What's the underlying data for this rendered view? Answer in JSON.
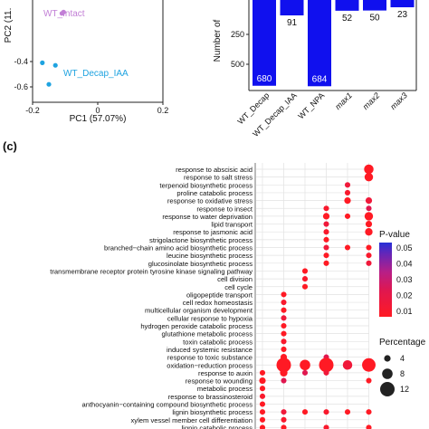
{
  "chart_data": [
    {
      "type": "scatter",
      "panel": "a",
      "xlabel": "PC1 (57.07%)",
      "ylabel": "PC2 (11.",
      "x_ticks": [
        "-0.2",
        "0",
        "0.2"
      ],
      "y_ticks": [
        "-0.4",
        "-0.6"
      ],
      "xlim": [
        -0.2,
        0.2
      ],
      "groups": [
        {
          "name": "WT_Intact",
          "color": "#c27fd6",
          "points": [
            [
              -0.11,
              -0.02
            ],
            [
              -0.105,
              -0.01
            ]
          ]
        },
        {
          "name": "WT_Decap_IAA",
          "color": "#1fa3e0",
          "points": [
            [
              -0.17,
              -0.41
            ],
            [
              -0.13,
              -0.43
            ],
            [
              -0.15,
              -0.58
            ]
          ]
        }
      ]
    },
    {
      "type": "bar",
      "panel": "b",
      "ylabel": "Number of",
      "y_ticks": [
        "250",
        "500"
      ],
      "ylim": [
        0,
        800
      ],
      "orientation": "downward",
      "categories": [
        "WT_Decap",
        "WT_Decap_IAA",
        "WT_NPA",
        "max1",
        "max2",
        "max3"
      ],
      "values": [
        680,
        91,
        684,
        52,
        50,
        23
      ],
      "color": "#1010ee"
    },
    {
      "type": "scatter",
      "panel": "c",
      "panel_label": "(c)",
      "columns": 6,
      "legend": {
        "color_title": "P-value",
        "color_ticks": [
          "0.05",
          "0.04",
          "0.03",
          "0.02",
          "0.01"
        ],
        "size_title": "Percentage",
        "size_ticks": [
          "4",
          "8",
          "12"
        ]
      },
      "terms": [
        "response to abscisic acid",
        "response to salt stress",
        "terpenoid biosynthetic process",
        "proline catabolic process",
        "response to oxidative stress",
        "response to insect",
        "response to water deprivation",
        "lipid transport",
        "response to jasmonic acid",
        "strigolactone biosynthetic process",
        "branched−chain amino acid biosynthetic process",
        "leucine biosynthetic process",
        "glucosinolate biosynthetic process",
        "transmembrane receptor protein tyrosine kinase signaling pathway",
        "cell division",
        "cell cycle",
        "oligopeptide transport",
        "cell redox homeostasis",
        "multicellular organism development",
        "cellular response to hypoxia",
        "hydrogen peroxide catabolic process",
        "glutathione metabolic process",
        "toxin catabolic process",
        "induced systemic resistance",
        "response to toxic substance",
        "oxidation−reduction process",
        "response to auxin",
        "response to wounding",
        "metabolic process",
        "response to brassinosteroid",
        "anthocyanin−containing compound biosynthetic process",
        "lignin biosynthetic process",
        "xylem vessel member cell differentiation",
        "lignin catabolic process"
      ],
      "points": [
        {
          "row": 0,
          "col": 5,
          "pct": 7,
          "p": 0.01
        },
        {
          "row": 1,
          "col": 5,
          "pct": 6,
          "p": 0.01
        },
        {
          "row": 2,
          "col": 4,
          "pct": 3,
          "p": 0.015
        },
        {
          "row": 3,
          "col": 4,
          "pct": 3,
          "p": 0.012
        },
        {
          "row": 4,
          "col": 4,
          "pct": 4,
          "p": 0.01
        },
        {
          "row": 4,
          "col": 5,
          "pct": 4,
          "p": 0.015
        },
        {
          "row": 5,
          "col": 3,
          "pct": 3,
          "p": 0.012
        },
        {
          "row": 5,
          "col": 5,
          "pct": 3,
          "p": 0.02
        },
        {
          "row": 6,
          "col": 3,
          "pct": 4,
          "p": 0.01
        },
        {
          "row": 6,
          "col": 4,
          "pct": 3,
          "p": 0.01
        },
        {
          "row": 6,
          "col": 5,
          "pct": 6,
          "p": 0.01
        },
        {
          "row": 7,
          "col": 3,
          "pct": 3,
          "p": 0.015
        },
        {
          "row": 7,
          "col": 5,
          "pct": 4,
          "p": 0.01
        },
        {
          "row": 8,
          "col": 3,
          "pct": 3,
          "p": 0.012
        },
        {
          "row": 8,
          "col": 5,
          "pct": 5,
          "p": 0.01
        },
        {
          "row": 9,
          "col": 3,
          "pct": 3,
          "p": 0.01
        },
        {
          "row": 10,
          "col": 3,
          "pct": 3,
          "p": 0.015
        },
        {
          "row": 10,
          "col": 4,
          "pct": 3,
          "p": 0.01
        },
        {
          "row": 10,
          "col": 5,
          "pct": 3,
          "p": 0.01
        },
        {
          "row": 11,
          "col": 3,
          "pct": 3,
          "p": 0.01
        },
        {
          "row": 11,
          "col": 5,
          "pct": 3,
          "p": 0.012
        },
        {
          "row": 12,
          "col": 3,
          "pct": 3,
          "p": 0.01
        },
        {
          "row": 12,
          "col": 5,
          "pct": 3,
          "p": 0.015
        },
        {
          "row": 13,
          "col": 2,
          "pct": 3,
          "p": 0.01
        },
        {
          "row": 14,
          "col": 2,
          "pct": 3,
          "p": 0.012
        },
        {
          "row": 15,
          "col": 2,
          "pct": 3,
          "p": 0.01
        },
        {
          "row": 16,
          "col": 1,
          "pct": 3,
          "p": 0.01
        },
        {
          "row": 17,
          "col": 1,
          "pct": 3,
          "p": 0.012
        },
        {
          "row": 18,
          "col": 1,
          "pct": 3,
          "p": 0.01
        },
        {
          "row": 19,
          "col": 1,
          "pct": 3,
          "p": 0.015
        },
        {
          "row": 20,
          "col": 1,
          "pct": 3,
          "p": 0.01
        },
        {
          "row": 21,
          "col": 1,
          "pct": 3,
          "p": 0.01
        },
        {
          "row": 22,
          "col": 1,
          "pct": 3,
          "p": 0.012
        },
        {
          "row": 23,
          "col": 1,
          "pct": 3,
          "p": 0.01
        },
        {
          "row": 24,
          "col": 1,
          "pct": 4,
          "p": 0.01
        },
        {
          "row": 24,
          "col": 3,
          "pct": 3,
          "p": 0.02
        },
        {
          "row": 25,
          "col": 1,
          "pct": 12,
          "p": 0.01
        },
        {
          "row": 25,
          "col": 2,
          "pct": 8,
          "p": 0.01
        },
        {
          "row": 25,
          "col": 3,
          "pct": 12,
          "p": 0.01
        },
        {
          "row": 25,
          "col": 4,
          "pct": 7,
          "p": 0.015
        },
        {
          "row": 25,
          "col": 5,
          "pct": 11,
          "p": 0.01
        },
        {
          "row": 26,
          "col": 0,
          "pct": 3,
          "p": 0.01
        },
        {
          "row": 26,
          "col": 1,
          "pct": 5,
          "p": 0.01
        },
        {
          "row": 26,
          "col": 2,
          "pct": 3,
          "p": 0.02
        },
        {
          "row": 26,
          "col": 3,
          "pct": 3,
          "p": 0.015
        },
        {
          "row": 27,
          "col": 0,
          "pct": 4,
          "p": 0.01
        },
        {
          "row": 27,
          "col": 1,
          "pct": 3,
          "p": 0.02
        },
        {
          "row": 27,
          "col": 5,
          "pct": 3,
          "p": 0.01
        },
        {
          "row": 28,
          "col": 0,
          "pct": 3,
          "p": 0.01
        },
        {
          "row": 29,
          "col": 0,
          "pct": 3,
          "p": 0.012
        },
        {
          "row": 30,
          "col": 0,
          "pct": 3,
          "p": 0.01
        },
        {
          "row": 31,
          "col": 0,
          "pct": 3,
          "p": 0.01
        },
        {
          "row": 31,
          "col": 1,
          "pct": 3,
          "p": 0.015
        },
        {
          "row": 31,
          "col": 2,
          "pct": 3,
          "p": 0.01
        },
        {
          "row": 31,
          "col": 3,
          "pct": 3,
          "p": 0.012
        },
        {
          "row": 31,
          "col": 4,
          "pct": 3,
          "p": 0.01
        },
        {
          "row": 31,
          "col": 5,
          "pct": 3,
          "p": 0.01
        },
        {
          "row": 32,
          "col": 0,
          "pct": 3,
          "p": 0.01
        },
        {
          "row": 32,
          "col": 1,
          "pct": 3,
          "p": 0.012
        },
        {
          "row": 33,
          "col": 0,
          "pct": 3,
          "p": 0.01
        },
        {
          "row": 33,
          "col": 1,
          "pct": 3,
          "p": 0.01
        },
        {
          "row": 33,
          "col": 3,
          "pct": 3,
          "p": 0.012
        },
        {
          "row": 33,
          "col": 5,
          "pct": 3,
          "p": 0.01
        }
      ]
    }
  ]
}
